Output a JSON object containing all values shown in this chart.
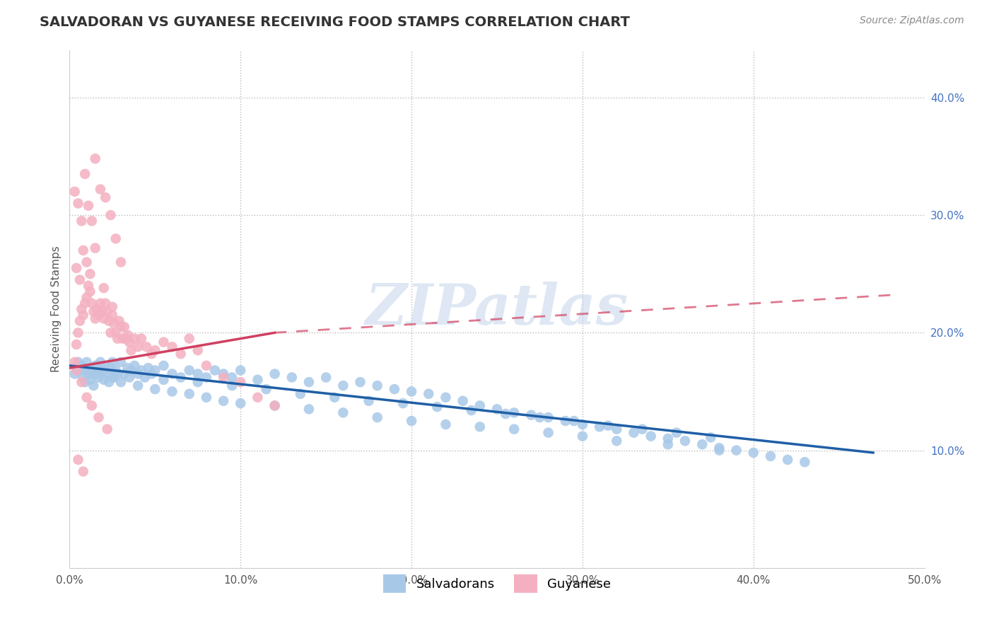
{
  "title": "SALVADORAN VS GUYANESE RECEIVING FOOD STAMPS CORRELATION CHART",
  "source_text": "Source: ZipAtlas.com",
  "ylabel": "Receiving Food Stamps",
  "xlim": [
    0.0,
    0.5
  ],
  "ylim": [
    0.0,
    0.44
  ],
  "xticks": [
    0.0,
    0.1,
    0.2,
    0.3,
    0.4,
    0.5
  ],
  "xtick_labels": [
    "0.0%",
    "10.0%",
    "20.0%",
    "30.0%",
    "40.0%",
    "50.0%"
  ],
  "yticks_right": [
    0.1,
    0.2,
    0.3,
    0.4
  ],
  "ytick_labels_right": [
    "10.0%",
    "20.0%",
    "30.0%",
    "40.0%"
  ],
  "watermark": "ZIPatlas",
  "salvadoran_color": "#a8c8e8",
  "guyanese_color": "#f4b0c0",
  "salvadoran_line_color": "#1f5fa6",
  "guyanese_line_color": "#d04060",
  "background_color": "#ffffff",
  "grid_color": "#bbbbbb",
  "title_color": "#333333",
  "title_fontsize": 14,
  "axis_label_fontsize": 11,
  "tick_fontsize": 11,
  "legend_fontsize": 12,
  "sal_x": [
    0.003,
    0.004,
    0.005,
    0.006,
    0.007,
    0.008,
    0.009,
    0.01,
    0.011,
    0.012,
    0.013,
    0.014,
    0.015,
    0.016,
    0.017,
    0.018,
    0.019,
    0.02,
    0.021,
    0.022,
    0.023,
    0.024,
    0.025,
    0.026,
    0.027,
    0.028,
    0.03,
    0.032,
    0.034,
    0.036,
    0.038,
    0.04,
    0.042,
    0.044,
    0.046,
    0.048,
    0.05,
    0.055,
    0.06,
    0.065,
    0.07,
    0.075,
    0.08,
    0.085,
    0.09,
    0.095,
    0.1,
    0.11,
    0.12,
    0.13,
    0.14,
    0.15,
    0.16,
    0.17,
    0.18,
    0.19,
    0.2,
    0.21,
    0.22,
    0.23,
    0.24,
    0.25,
    0.26,
    0.27,
    0.28,
    0.29,
    0.3,
    0.31,
    0.32,
    0.33,
    0.34,
    0.35,
    0.36,
    0.37,
    0.38,
    0.39,
    0.4,
    0.41,
    0.42,
    0.43,
    0.007,
    0.01,
    0.013,
    0.016,
    0.02,
    0.025,
    0.03,
    0.04,
    0.05,
    0.06,
    0.07,
    0.08,
    0.09,
    0.1,
    0.12,
    0.14,
    0.16,
    0.18,
    0.2,
    0.22,
    0.24,
    0.26,
    0.28,
    0.3,
    0.32,
    0.35,
    0.38,
    0.015,
    0.035,
    0.055,
    0.075,
    0.095,
    0.115,
    0.135,
    0.155,
    0.175,
    0.195,
    0.215,
    0.235,
    0.255,
    0.275,
    0.295,
    0.315,
    0.335,
    0.355,
    0.375
  ],
  "sal_y": [
    0.165,
    0.17,
    0.175,
    0.168,
    0.172,
    0.162,
    0.158,
    0.175,
    0.165,
    0.16,
    0.168,
    0.155,
    0.172,
    0.165,
    0.162,
    0.175,
    0.168,
    0.16,
    0.172,
    0.165,
    0.158,
    0.17,
    0.175,
    0.162,
    0.168,
    0.165,
    0.175,
    0.165,
    0.17,
    0.168,
    0.172,
    0.165,
    0.168,
    0.162,
    0.17,
    0.165,
    0.168,
    0.172,
    0.165,
    0.162,
    0.168,
    0.165,
    0.162,
    0.168,
    0.165,
    0.162,
    0.168,
    0.16,
    0.165,
    0.162,
    0.158,
    0.162,
    0.155,
    0.158,
    0.155,
    0.152,
    0.15,
    0.148,
    0.145,
    0.142,
    0.138,
    0.135,
    0.132,
    0.13,
    0.128,
    0.125,
    0.122,
    0.12,
    0.118,
    0.115,
    0.112,
    0.11,
    0.108,
    0.105,
    0.102,
    0.1,
    0.098,
    0.095,
    0.092,
    0.09,
    0.17,
    0.168,
    0.165,
    0.172,
    0.168,
    0.162,
    0.158,
    0.155,
    0.152,
    0.15,
    0.148,
    0.145,
    0.142,
    0.14,
    0.138,
    0.135,
    0.132,
    0.128,
    0.125,
    0.122,
    0.12,
    0.118,
    0.115,
    0.112,
    0.108,
    0.105,
    0.1,
    0.165,
    0.162,
    0.16,
    0.158,
    0.155,
    0.152,
    0.148,
    0.145,
    0.142,
    0.14,
    0.137,
    0.134,
    0.131,
    0.128,
    0.125,
    0.121,
    0.118,
    0.115,
    0.111
  ],
  "guy_x": [
    0.003,
    0.004,
    0.005,
    0.006,
    0.007,
    0.008,
    0.009,
    0.01,
    0.011,
    0.012,
    0.013,
    0.014,
    0.015,
    0.016,
    0.017,
    0.018,
    0.019,
    0.02,
    0.021,
    0.022,
    0.023,
    0.024,
    0.025,
    0.026,
    0.027,
    0.028,
    0.029,
    0.03,
    0.031,
    0.032,
    0.033,
    0.034,
    0.035,
    0.036,
    0.038,
    0.04,
    0.042,
    0.045,
    0.048,
    0.05,
    0.055,
    0.06,
    0.065,
    0.07,
    0.075,
    0.08,
    0.09,
    0.1,
    0.11,
    0.12,
    0.003,
    0.005,
    0.007,
    0.009,
    0.011,
    0.013,
    0.015,
    0.018,
    0.021,
    0.024,
    0.027,
    0.03,
    0.004,
    0.006,
    0.008,
    0.01,
    0.012,
    0.015,
    0.02,
    0.025,
    0.004,
    0.007,
    0.01,
    0.013,
    0.017,
    0.022,
    0.005,
    0.008
  ],
  "guy_y": [
    0.175,
    0.19,
    0.2,
    0.21,
    0.22,
    0.215,
    0.225,
    0.23,
    0.24,
    0.235,
    0.225,
    0.218,
    0.212,
    0.22,
    0.215,
    0.225,
    0.218,
    0.212,
    0.225,
    0.218,
    0.21,
    0.2,
    0.215,
    0.208,
    0.2,
    0.195,
    0.21,
    0.205,
    0.195,
    0.205,
    0.195,
    0.198,
    0.192,
    0.185,
    0.195,
    0.188,
    0.195,
    0.188,
    0.182,
    0.185,
    0.192,
    0.188,
    0.182,
    0.195,
    0.185,
    0.172,
    0.162,
    0.158,
    0.145,
    0.138,
    0.32,
    0.31,
    0.295,
    0.335,
    0.308,
    0.295,
    0.348,
    0.322,
    0.315,
    0.3,
    0.28,
    0.26,
    0.255,
    0.245,
    0.27,
    0.26,
    0.25,
    0.272,
    0.238,
    0.222,
    0.168,
    0.158,
    0.145,
    0.138,
    0.128,
    0.118,
    0.092,
    0.082
  ]
}
